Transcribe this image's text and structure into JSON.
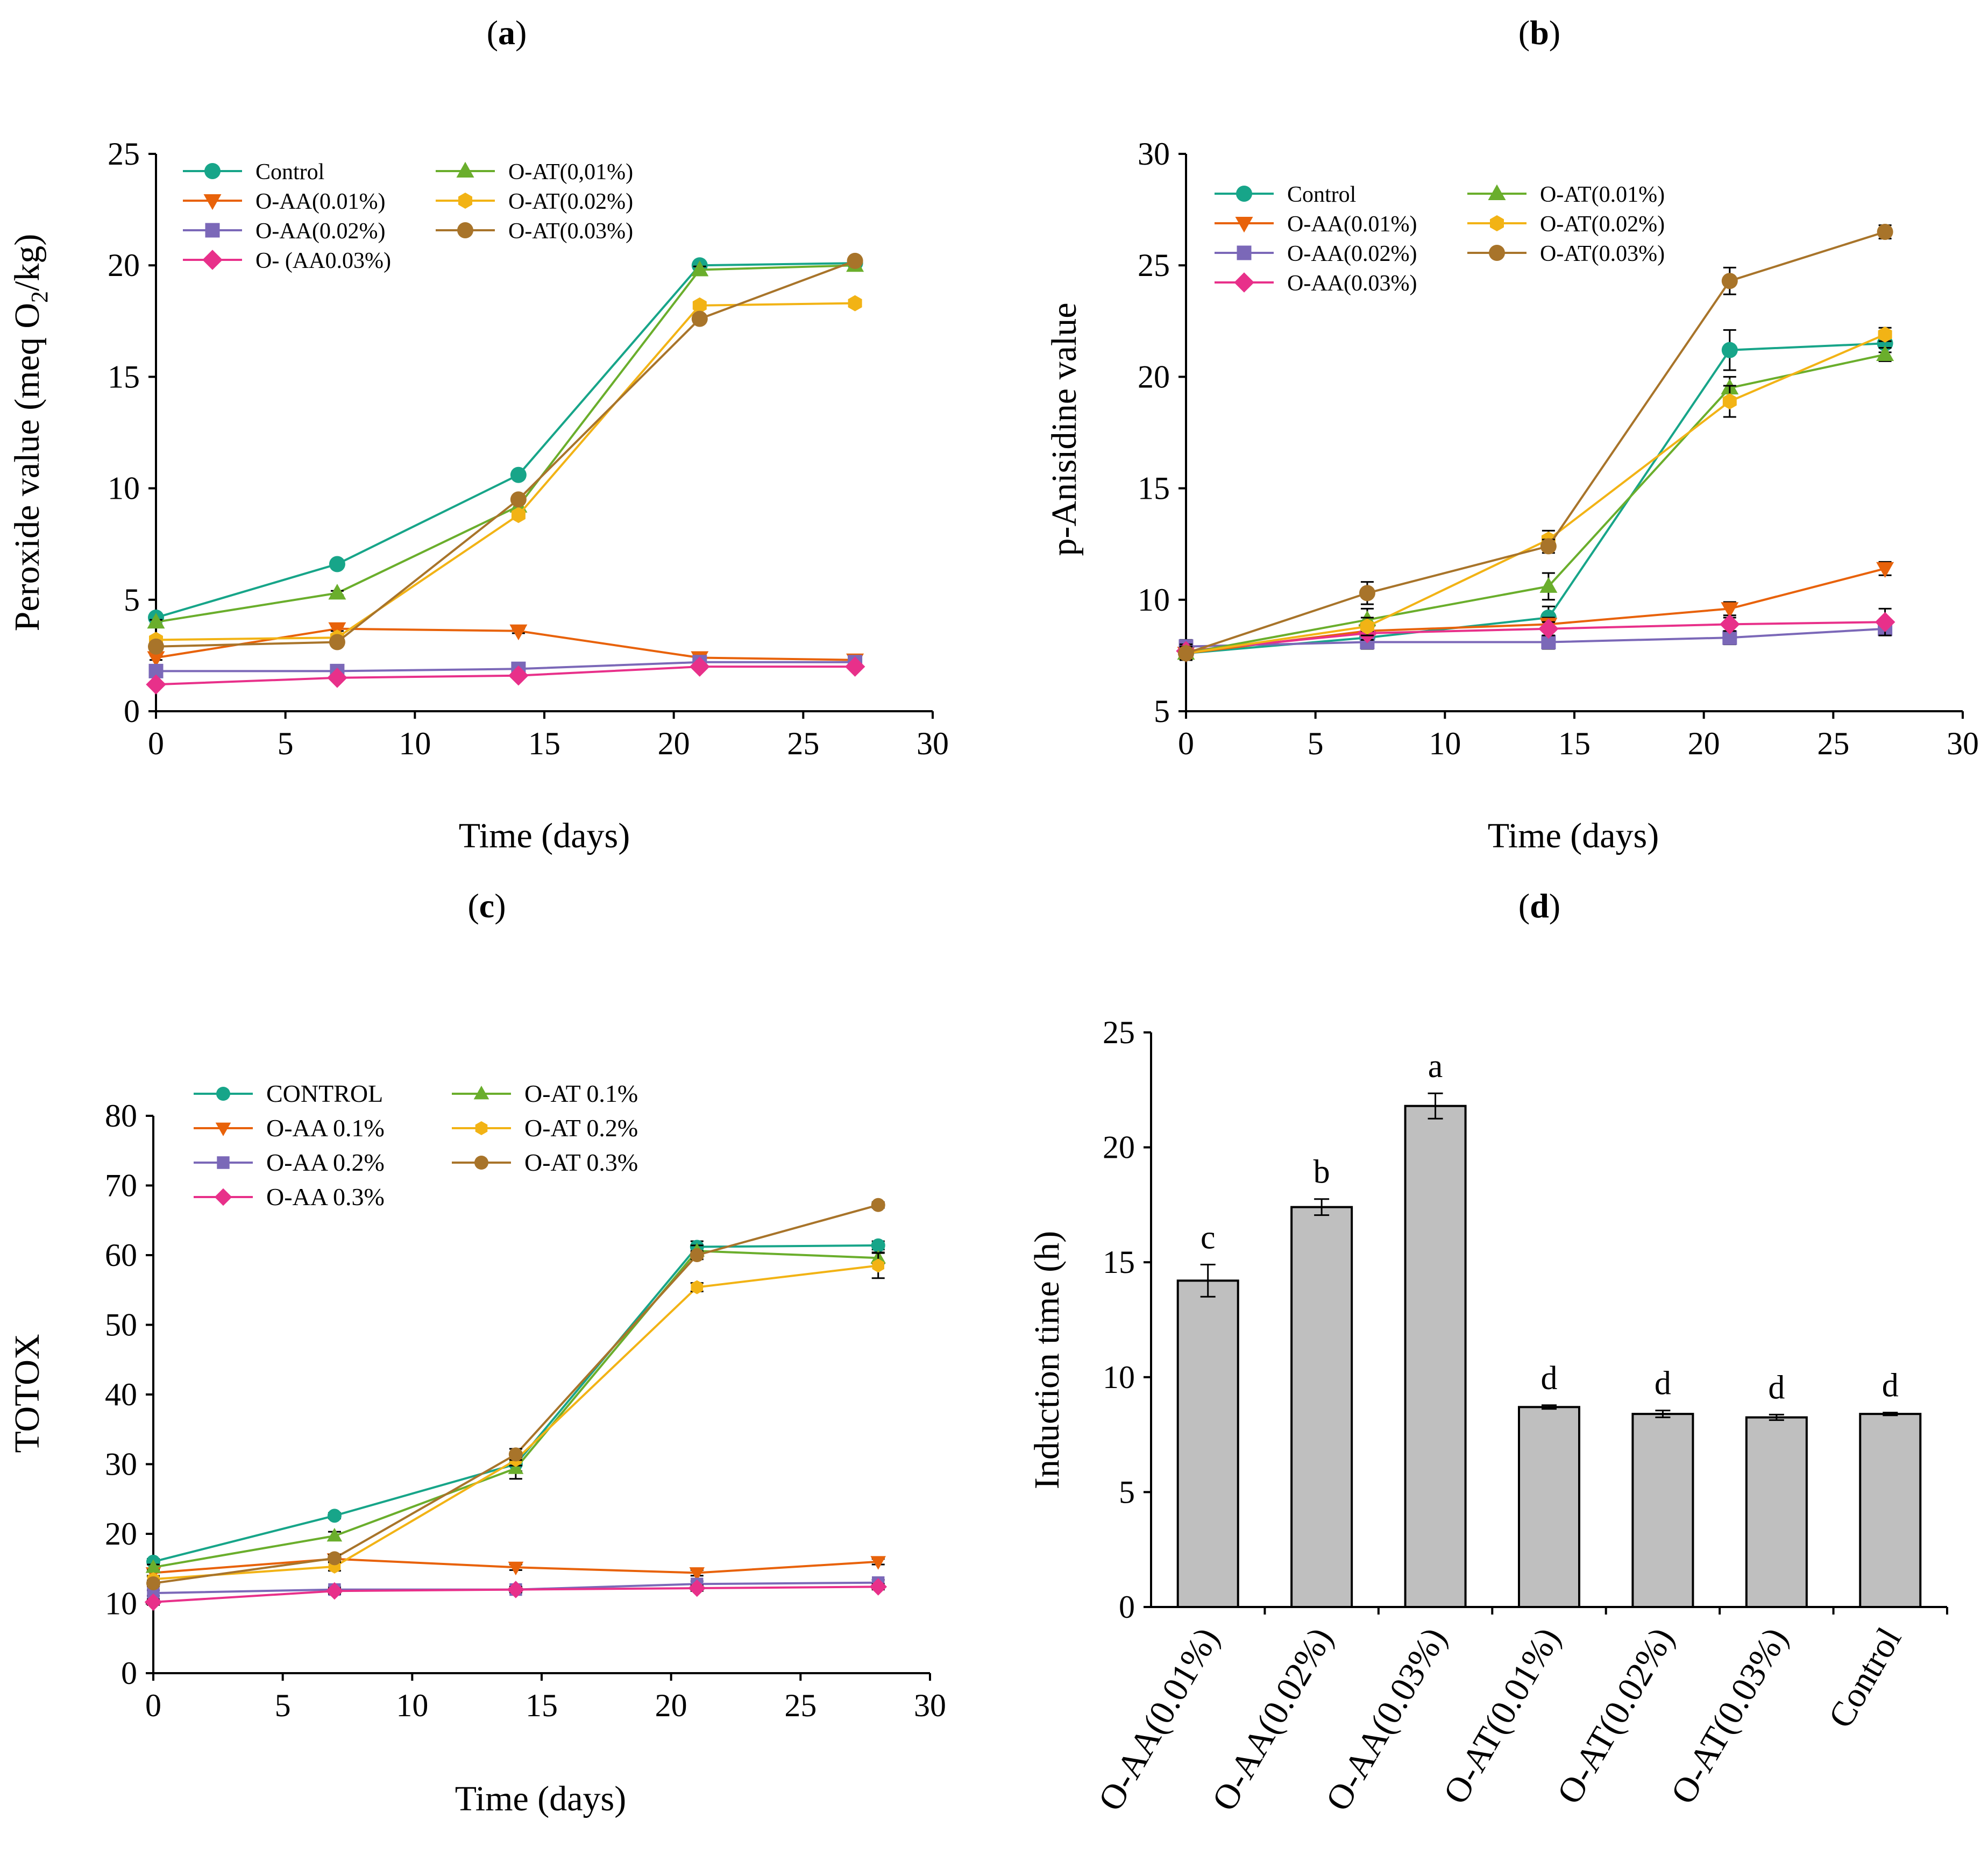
{
  "chart_data": [
    {
      "id": "a",
      "type": "line",
      "title_prefix": "(",
      "title_letter": "a",
      "title_suffix": ")",
      "xlabel": "Time (days)",
      "ylabel_main": "Peroxide value (meq O",
      "ylabel_sub": "2",
      "ylabel_end": "/kg)",
      "xlim": [
        0,
        30
      ],
      "ylim": [
        0,
        25
      ],
      "xticks": [
        0,
        5,
        10,
        15,
        20,
        25,
        30
      ],
      "yticks": [
        0,
        5,
        10,
        15,
        20,
        25
      ],
      "legend_position": "top-left",
      "x": [
        0,
        7,
        14,
        21,
        27
      ],
      "series": [
        {
          "name": "Control",
          "color": "#17A589",
          "marker": "circle",
          "values": [
            4.2,
            6.6,
            10.6,
            20.0,
            20.1
          ],
          "errors": [
            0.1,
            0.15,
            0.15,
            0.15,
            0.15
          ]
        },
        {
          "name": "O-AA(0.01%)",
          "color": "#E8620A",
          "marker": "triangle-down",
          "values": [
            2.4,
            3.7,
            3.6,
            2.4,
            2.3
          ],
          "errors": [
            0.1,
            0.1,
            0.1,
            0.1,
            0.1
          ]
        },
        {
          "name": "O-AA(0.02%)",
          "color": "#7B68B8",
          "marker": "square",
          "values": [
            1.8,
            1.8,
            1.9,
            2.2,
            2.2
          ],
          "errors": [
            0.1,
            0.1,
            0.1,
            0.1,
            0.1
          ]
        },
        {
          "name": "O- (AA0.03%)",
          "color": "#E8308A",
          "marker": "diamond",
          "values": [
            1.2,
            1.5,
            1.6,
            2.0,
            2.0
          ],
          "errors": [
            0.1,
            0.1,
            0.1,
            0.1,
            0.1
          ]
        },
        {
          "name": "O-AT(0,01%)",
          "color": "#6AAE2C",
          "marker": "triangle-up",
          "values": [
            4.0,
            5.3,
            9.2,
            19.8,
            20.0
          ],
          "errors": [
            0.1,
            0.1,
            0.15,
            0.15,
            0.15
          ]
        },
        {
          "name": "O-AT(0.02%)",
          "color": "#F2B315",
          "marker": "hexagon",
          "values": [
            3.2,
            3.3,
            8.8,
            18.2,
            18.3
          ],
          "errors": [
            0.1,
            0.1,
            0.15,
            0.15,
            0.15
          ]
        },
        {
          "name": "O-AT(0.03%)",
          "color": "#A8742A",
          "marker": "circle",
          "values": [
            2.9,
            3.1,
            9.5,
            17.6,
            20.2
          ],
          "errors": [
            0.1,
            0.1,
            0.15,
            0.15,
            0.15
          ]
        }
      ]
    },
    {
      "id": "b",
      "type": "line",
      "title_prefix": "(",
      "title_letter": "b",
      "title_suffix": ")",
      "xlabel": "Time (days)",
      "ylabel": "p-Anisidine value",
      "xlim": [
        0,
        30
      ],
      "ylim": [
        5,
        30
      ],
      "xticks": [
        0,
        5,
        10,
        15,
        20,
        25,
        30
      ],
      "yticks": [
        5,
        10,
        15,
        20,
        25,
        30
      ],
      "legend_position": "top-left",
      "x": [
        0,
        7,
        14,
        21,
        27
      ],
      "series": [
        {
          "name": "Control",
          "color": "#17A589",
          "marker": "circle",
          "values": [
            7.6,
            8.3,
            9.2,
            21.2,
            21.5
          ],
          "errors": [
            0.3,
            0.3,
            0.5,
            0.9,
            0.4
          ]
        },
        {
          "name": "O-AA(0.01%)",
          "color": "#E8620A",
          "marker": "triangle-down",
          "values": [
            7.6,
            8.6,
            8.9,
            9.6,
            11.4
          ],
          "errors": [
            0.3,
            0.3,
            0.3,
            0.3,
            0.3
          ]
        },
        {
          "name": "O-AA(0.02%)",
          "color": "#7B68B8",
          "marker": "square",
          "values": [
            7.9,
            8.1,
            8.1,
            8.3,
            8.7
          ],
          "errors": [
            0.3,
            0.3,
            0.3,
            0.3,
            0.3
          ]
        },
        {
          "name": "O-AA(0.03%)",
          "color": "#E8308A",
          "marker": "diamond",
          "values": [
            7.7,
            8.5,
            8.7,
            8.9,
            9.0
          ],
          "errors": [
            0.3,
            0.3,
            0.3,
            0.3,
            0.6
          ]
        },
        {
          "name": "O-AT(0.01%)",
          "color": "#6AAE2C",
          "marker": "triangle-up",
          "values": [
            7.6,
            9.1,
            10.6,
            19.5,
            21.0
          ],
          "errors": [
            0.3,
            0.5,
            0.6,
            0.5,
            0.3
          ]
        },
        {
          "name": "O-AT(0.02%)",
          "color": "#F2B315",
          "marker": "hexagon",
          "values": [
            7.6,
            8.8,
            12.7,
            18.9,
            21.9
          ],
          "errors": [
            0.3,
            0.4,
            0.4,
            0.7,
            0.3
          ]
        },
        {
          "name": "O-AT(0.03%)",
          "color": "#A8742A",
          "marker": "circle",
          "values": [
            7.6,
            10.3,
            12.4,
            24.3,
            26.5
          ],
          "errors": [
            0.3,
            0.5,
            0.3,
            0.6,
            0.3
          ]
        }
      ]
    },
    {
      "id": "c",
      "type": "line",
      "title_prefix": "(",
      "title_letter": "c",
      "title_suffix": ")",
      "xlabel": "Time (days)",
      "ylabel": "TOTOX",
      "xlim": [
        0,
        30
      ],
      "ylim": [
        0,
        80
      ],
      "xticks": [
        0,
        5,
        10,
        15,
        20,
        25,
        30
      ],
      "yticks": [
        0,
        10,
        20,
        30,
        40,
        50,
        60,
        70,
        80
      ],
      "legend_position": "top-left",
      "x": [
        0,
        7,
        14,
        21,
        28
      ],
      "series": [
        {
          "name": "CONTROL",
          "color": "#17A589",
          "marker": "circle",
          "values": [
            16.0,
            22.6,
            30.0,
            61.2,
            61.4
          ],
          "errors": [
            0.4,
            0.4,
            1.0,
            0.8,
            0.6
          ]
        },
        {
          "name": "O-AA 0.1%",
          "color": "#E8620A",
          "marker": "triangle-down",
          "values": [
            14.4,
            16.4,
            15.2,
            14.4,
            16.0
          ],
          "errors": [
            0.4,
            0.4,
            0.4,
            0.4,
            0.4
          ]
        },
        {
          "name": "O-AA 0.2%",
          "color": "#7B68B8",
          "marker": "square",
          "values": [
            11.5,
            12.0,
            12.0,
            12.8,
            13.0
          ],
          "errors": [
            0.4,
            0.4,
            0.4,
            0.4,
            0.4
          ]
        },
        {
          "name": "O-AA 0.3%",
          "color": "#E8308A",
          "marker": "diamond",
          "values": [
            10.2,
            11.8,
            12.0,
            12.2,
            12.4
          ],
          "errors": [
            0.4,
            0.4,
            0.4,
            0.4,
            0.4
          ]
        },
        {
          "name": "O-AT 0.1%",
          "color": "#6AAE2C",
          "marker": "triangle-up",
          "values": [
            15.2,
            19.7,
            29.4,
            60.6,
            59.6
          ],
          "errors": [
            0.4,
            0.6,
            1.5,
            0.8,
            0.8
          ]
        },
        {
          "name": "O-AT 0.2%",
          "color": "#F2B315",
          "marker": "hexagon",
          "values": [
            13.5,
            15.3,
            30.6,
            55.4,
            58.5
          ],
          "errors": [
            0.4,
            0.6,
            0.8,
            0.6,
            1.8
          ]
        },
        {
          "name": "O-AT 0.3%",
          "color": "#A8742A",
          "marker": "circle",
          "values": [
            12.9,
            16.5,
            31.4,
            60.0,
            67.2
          ],
          "errors": [
            0.4,
            0.5,
            0.8,
            0.6,
            0.4
          ]
        }
      ]
    },
    {
      "id": "d",
      "type": "bar",
      "title_prefix": "(",
      "title_letter": "d",
      "title_suffix": ")",
      "xlabel": "",
      "ylabel": "Induction time (h)",
      "ylim": [
        0,
        25
      ],
      "yticks": [
        0,
        5,
        10,
        15,
        20,
        25
      ],
      "bar_color": "#BFBFBF",
      "categories": [
        "O-AA(0.01%)",
        "O-AA(0.02%)",
        "O-AA(0.03%)",
        "O-AT(0.01%)",
        "O-AT(0.02%)",
        "O-AT(0.03%)",
        "Control"
      ],
      "values": [
        14.2,
        17.4,
        21.8,
        8.7,
        8.4,
        8.25,
        8.4
      ],
      "errors": [
        0.7,
        0.35,
        0.55,
        0.08,
        0.15,
        0.12,
        0.06
      ],
      "significance": [
        "c",
        "b",
        "a",
        "d",
        "d",
        "d",
        "d"
      ]
    }
  ]
}
